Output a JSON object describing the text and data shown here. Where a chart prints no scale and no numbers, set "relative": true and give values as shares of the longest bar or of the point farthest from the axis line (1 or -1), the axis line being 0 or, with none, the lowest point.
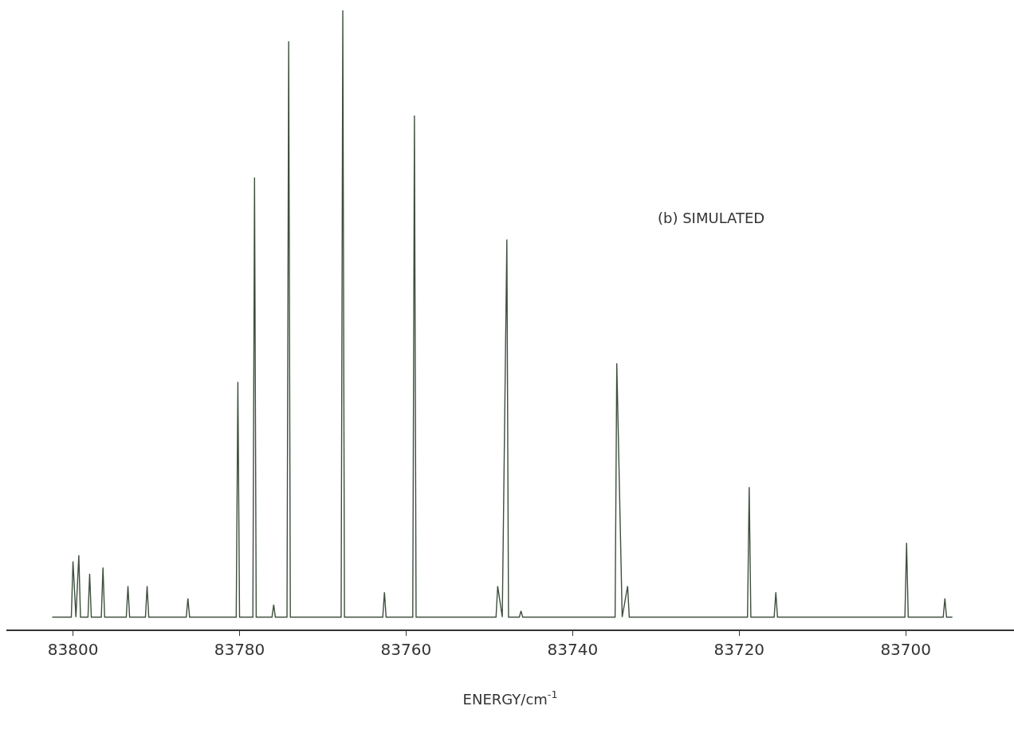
{
  "chart_data": {
    "type": "line",
    "relative": true,
    "xlabel": "ENERGY/cm$^{-1}$",
    "annotations": [
      "(b) SIMULATED"
    ],
    "xlim": [
      83808,
      83687
    ],
    "xticks": [
      83800,
      83780,
      83760,
      83740,
      83720,
      83700
    ],
    "marker": "none",
    "line_style": "solid",
    "series": [
      {
        "color": "#3f4f3f",
        "x": [
          83802.5,
          83800.2,
          83800.0,
          83799.65,
          83799.3,
          83799.1,
          83798.2,
          83798.0,
          83797.8,
          83796.6,
          83796.4,
          83796.2,
          83793.6,
          83793.4,
          83793.2,
          83791.3,
          83791.1,
          83790.9,
          83786.4,
          83786.2,
          83786.0,
          83780.4,
          83780.2,
          83780.0,
          83778.4,
          83778.2,
          83778.0,
          83776.1,
          83775.9,
          83775.7,
          83774.3,
          83774.1,
          83773.9,
          83767.8,
          83767.6,
          83767.4,
          83762.8,
          83762.6,
          83762.4,
          83759.2,
          83759.0,
          83758.8,
          83749.2,
          83749.0,
          83748.45,
          83747.9,
          83747.7,
          83746.4,
          83746.2,
          83746.0,
          83734.9,
          83734.7,
          83734.05,
          83733.4,
          83733.2,
          83719.0,
          83718.8,
          83718.6,
          83715.8,
          83715.6,
          83715.4,
          83700.1,
          83699.9,
          83699.7,
          83695.5,
          83695.3,
          83695.1,
          83694.4
        ],
        "values": [
          0.02,
          0.02,
          0.11,
          0.02,
          0.12,
          0.02,
          0.02,
          0.09,
          0.02,
          0.02,
          0.1,
          0.02,
          0.02,
          0.07,
          0.02,
          0.02,
          0.07,
          0.02,
          0.02,
          0.05,
          0.02,
          0.02,
          0.4,
          0.02,
          0.02,
          0.73,
          0.02,
          0.02,
          0.04,
          0.02,
          0.02,
          0.95,
          0.02,
          0.02,
          1.0,
          0.02,
          0.02,
          0.06,
          0.02,
          0.02,
          0.83,
          0.02,
          0.02,
          0.07,
          0.02,
          0.63,
          0.02,
          0.02,
          0.03,
          0.02,
          0.02,
          0.43,
          0.02,
          0.07,
          0.02,
          0.02,
          0.23,
          0.02,
          0.02,
          0.06,
          0.02,
          0.02,
          0.14,
          0.02,
          0.02,
          0.05,
          0.02,
          0.02
        ]
      }
    ]
  }
}
